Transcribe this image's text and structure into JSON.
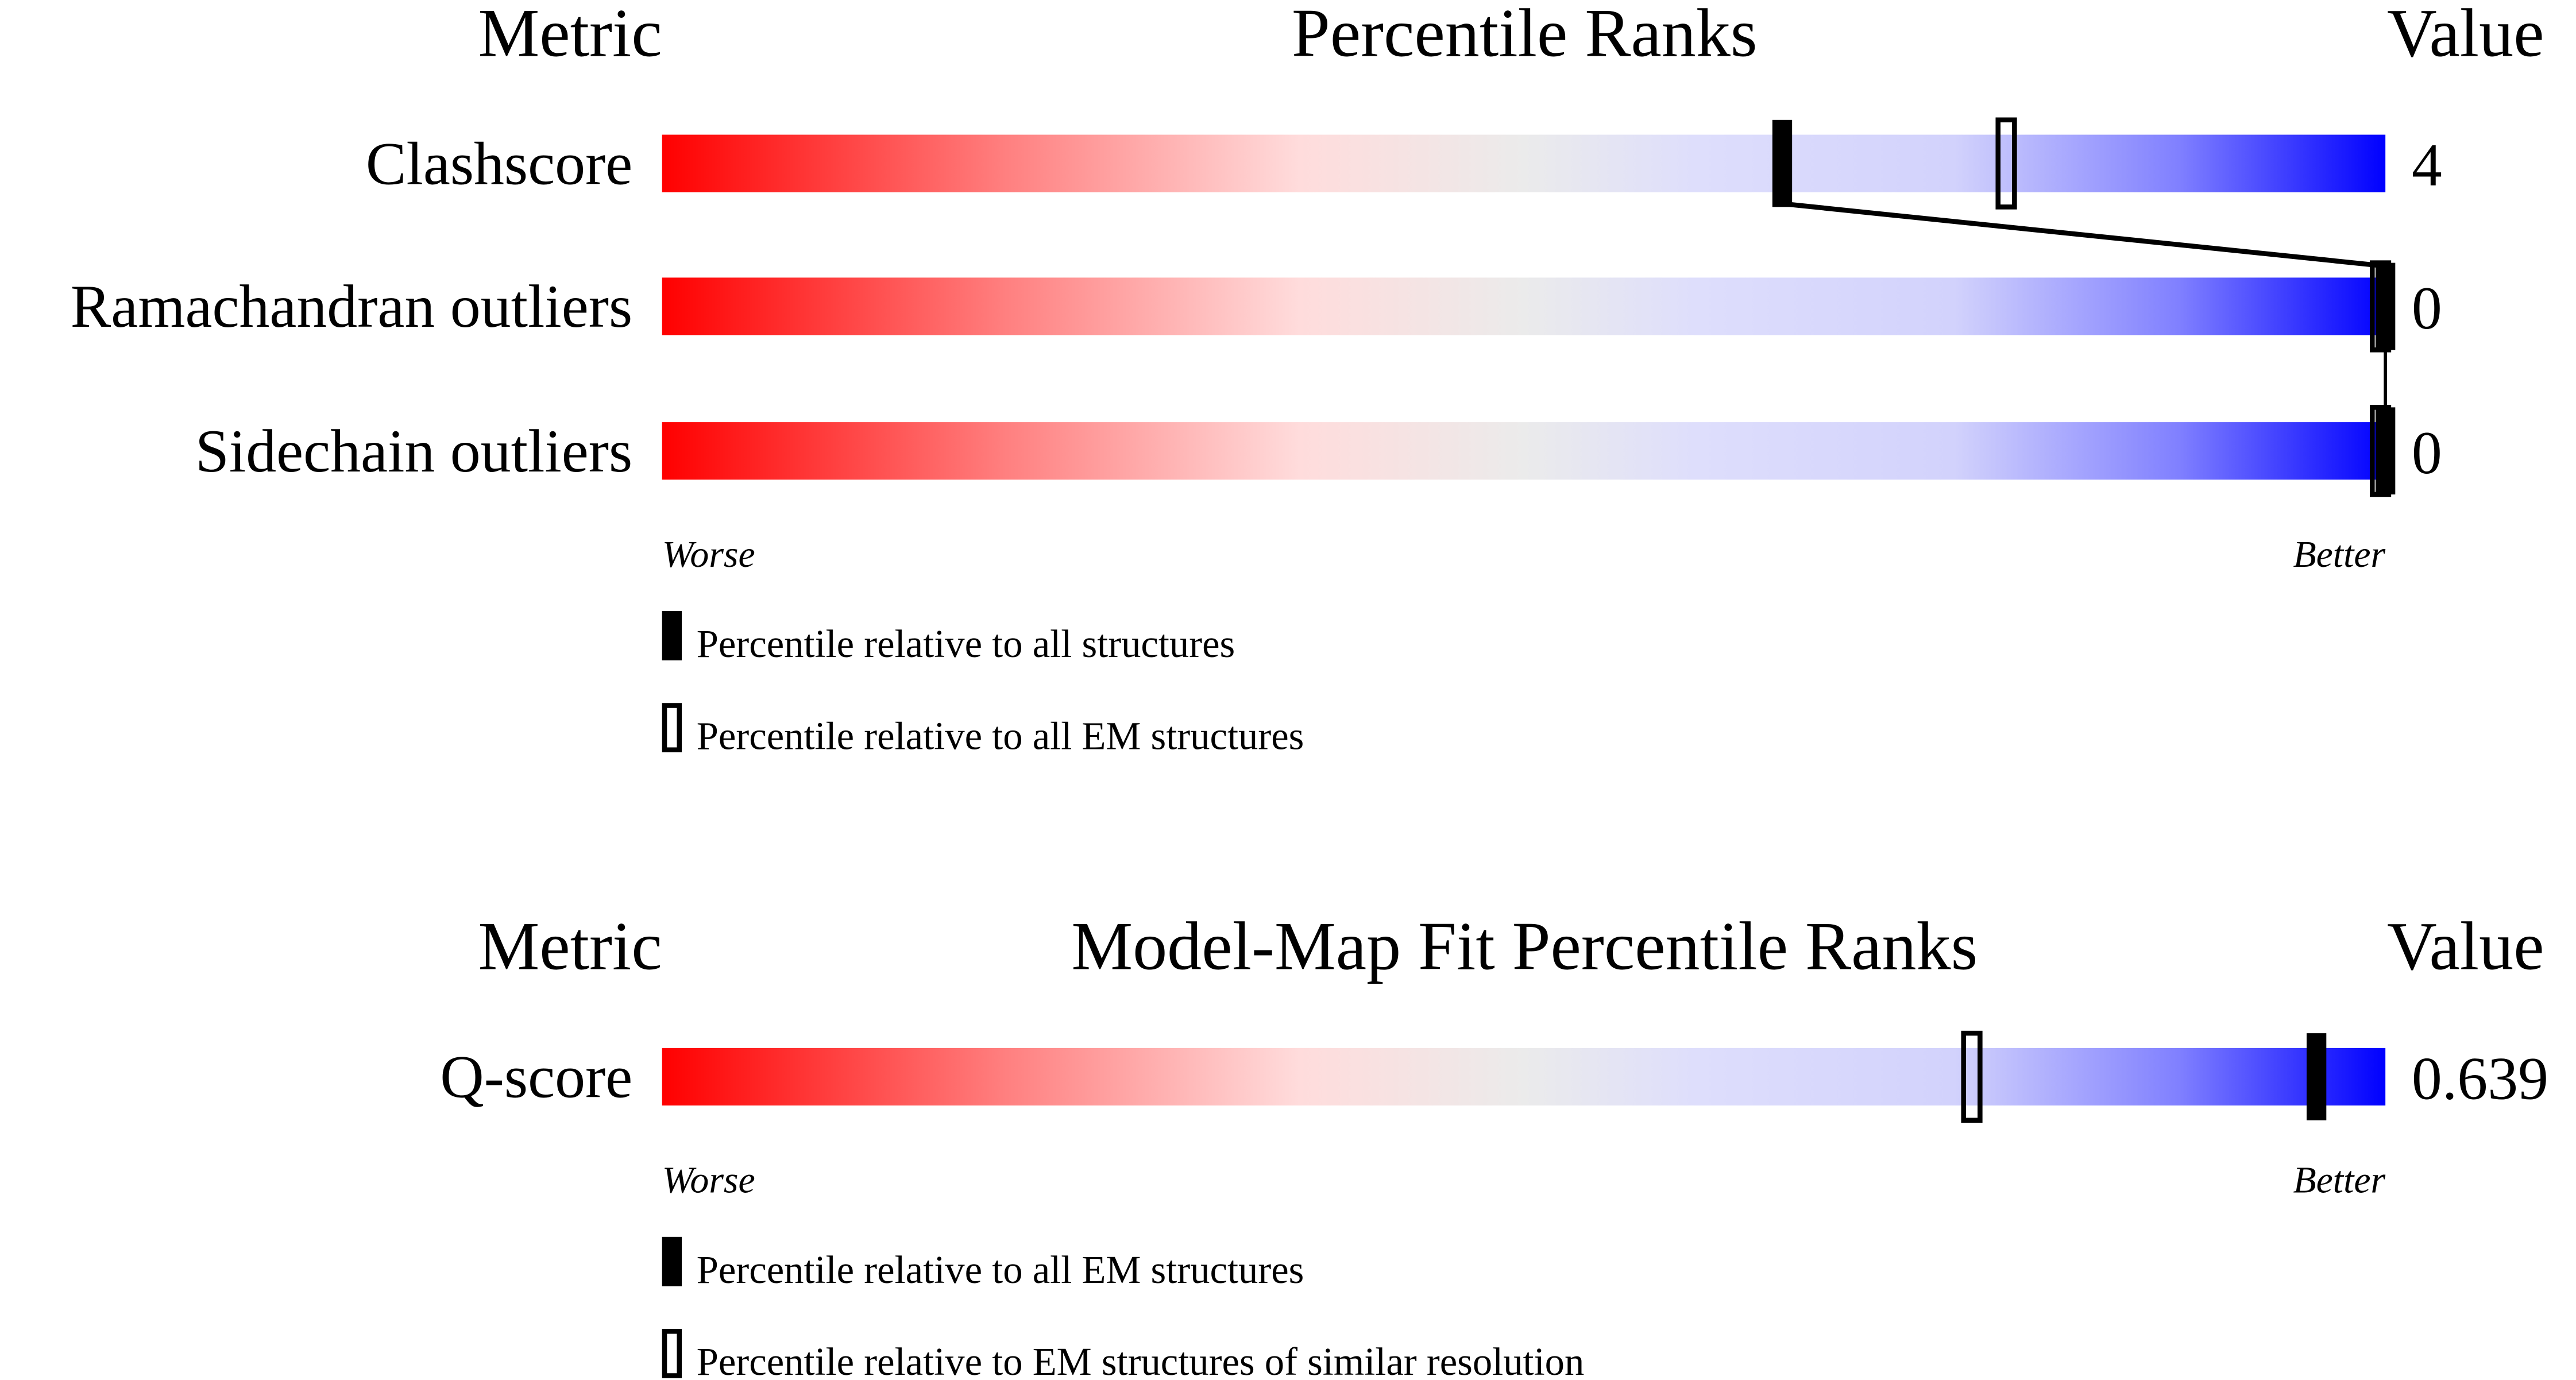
{
  "chart_data": [
    {
      "type": "percentile-slider",
      "headers": {
        "metric": "Metric",
        "title": "Percentile Ranks",
        "value": "Value"
      },
      "rows": [
        {
          "metric": "Clashscore",
          "value": "4",
          "percentile_all": 65,
          "percentile_em": 78
        },
        {
          "metric": "Ramachandran outliers",
          "value": "0",
          "percentile_all": 100,
          "percentile_em": 100
        },
        {
          "metric": "Sidechain outliers",
          "value": "0",
          "percentile_all": 100,
          "percentile_em": 100
        }
      ],
      "axis": {
        "left": "Worse",
        "right": "Better",
        "range": [
          0,
          100
        ]
      },
      "legend": {
        "filled": "Percentile relative to all structures",
        "open": "Percentile relative to all EM structures"
      }
    },
    {
      "type": "percentile-slider",
      "headers": {
        "metric": "Metric",
        "title": "Model-Map Fit Percentile Ranks",
        "value": "Value"
      },
      "rows": [
        {
          "metric": "Q-score",
          "value": "0.639",
          "percentile_all": 96,
          "percentile_em": 76
        }
      ],
      "axis": {
        "left": "Worse",
        "right": "Better",
        "range": [
          0,
          100
        ]
      },
      "legend": {
        "filled": "Percentile relative to all EM structures",
        "open": "Percentile relative to EM structures of similar resolution"
      }
    }
  ],
  "colors": {
    "worse": "#ff0000",
    "middle": "#ebebeb",
    "better": "#0000ff",
    "marker": "#000000"
  }
}
